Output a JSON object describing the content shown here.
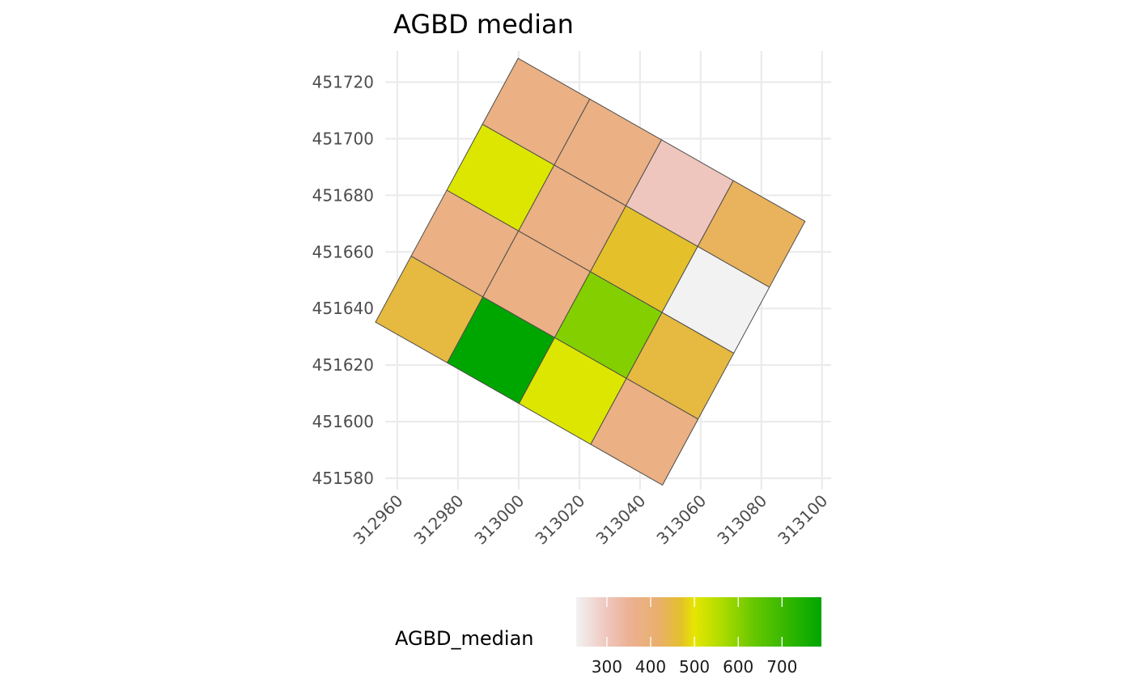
{
  "chart_data": {
    "type": "heatmap",
    "title": "AGBD median",
    "xlabel": "",
    "ylabel": "",
    "xlim": [
      312956,
      313103
    ],
    "ylim": [
      451576,
      451731
    ],
    "x_ticks": [
      "312960",
      "312980",
      "313000",
      "313020",
      "313040",
      "313060",
      "313080",
      "313100"
    ],
    "y_ticks": [
      "451580",
      "451600",
      "451620",
      "451640",
      "451660",
      "451680",
      "451700",
      "451720"
    ],
    "grid": true,
    "grid_color": "#ebebeb",
    "cell_border_color": "#4d4d4d",
    "grid_origin": [
      312999.8,
      451728.4
    ],
    "grid_step_col": [
      23.65,
      -14.4
    ],
    "grid_step_row": [
      -11.75,
      -23.3
    ],
    "cells": [
      {
        "row": 0,
        "col": 0,
        "value": 400,
        "color": "#ebb083"
      },
      {
        "row": 0,
        "col": 1,
        "value": 400,
        "color": "#ebb083"
      },
      {
        "row": 0,
        "col": 2,
        "value": 300,
        "color": "#efc6bd"
      },
      {
        "row": 0,
        "col": 3,
        "value": 430,
        "color": "#e9b25c"
      },
      {
        "row": 1,
        "col": 0,
        "value": 515,
        "color": "#dde600"
      },
      {
        "row": 1,
        "col": 1,
        "value": 400,
        "color": "#ebb083"
      },
      {
        "row": 1,
        "col": 2,
        "value": 470,
        "color": "#e4c12b"
      },
      {
        "row": 1,
        "col": 3,
        "value": 230,
        "color": "#f2f2f2"
      },
      {
        "row": 2,
        "col": 0,
        "value": 400,
        "color": "#ebb083"
      },
      {
        "row": 2,
        "col": 1,
        "value": 400,
        "color": "#ebb083"
      },
      {
        "row": 2,
        "col": 2,
        "value": 610,
        "color": "#84cf00"
      },
      {
        "row": 2,
        "col": 3,
        "value": 450,
        "color": "#e6b940"
      },
      {
        "row": 3,
        "col": 0,
        "value": 450,
        "color": "#e6b940"
      },
      {
        "row": 3,
        "col": 1,
        "value": 770,
        "color": "#00a600"
      },
      {
        "row": 3,
        "col": 2,
        "value": 515,
        "color": "#dde600"
      },
      {
        "row": 3,
        "col": 3,
        "value": 400,
        "color": "#ebb083"
      }
    ],
    "legend": {
      "title": "AGBD_median",
      "placement": "bottom",
      "ticks": [
        "300",
        "400",
        "500",
        "600",
        "700"
      ],
      "tick_values": [
        300,
        400,
        500,
        600,
        700
      ],
      "range": [
        230,
        790
      ],
      "gradient": [
        {
          "value": 230,
          "color": "#f2f2f2"
        },
        {
          "value": 300,
          "color": "#efc6bd"
        },
        {
          "value": 350,
          "color": "#ecb194"
        },
        {
          "value": 420,
          "color": "#e9af6a"
        },
        {
          "value": 470,
          "color": "#e4c12b"
        },
        {
          "value": 500,
          "color": "#e6e600"
        },
        {
          "value": 560,
          "color": "#b0dc00"
        },
        {
          "value": 640,
          "color": "#63c600"
        },
        {
          "value": 790,
          "color": "#00a600"
        }
      ]
    }
  }
}
